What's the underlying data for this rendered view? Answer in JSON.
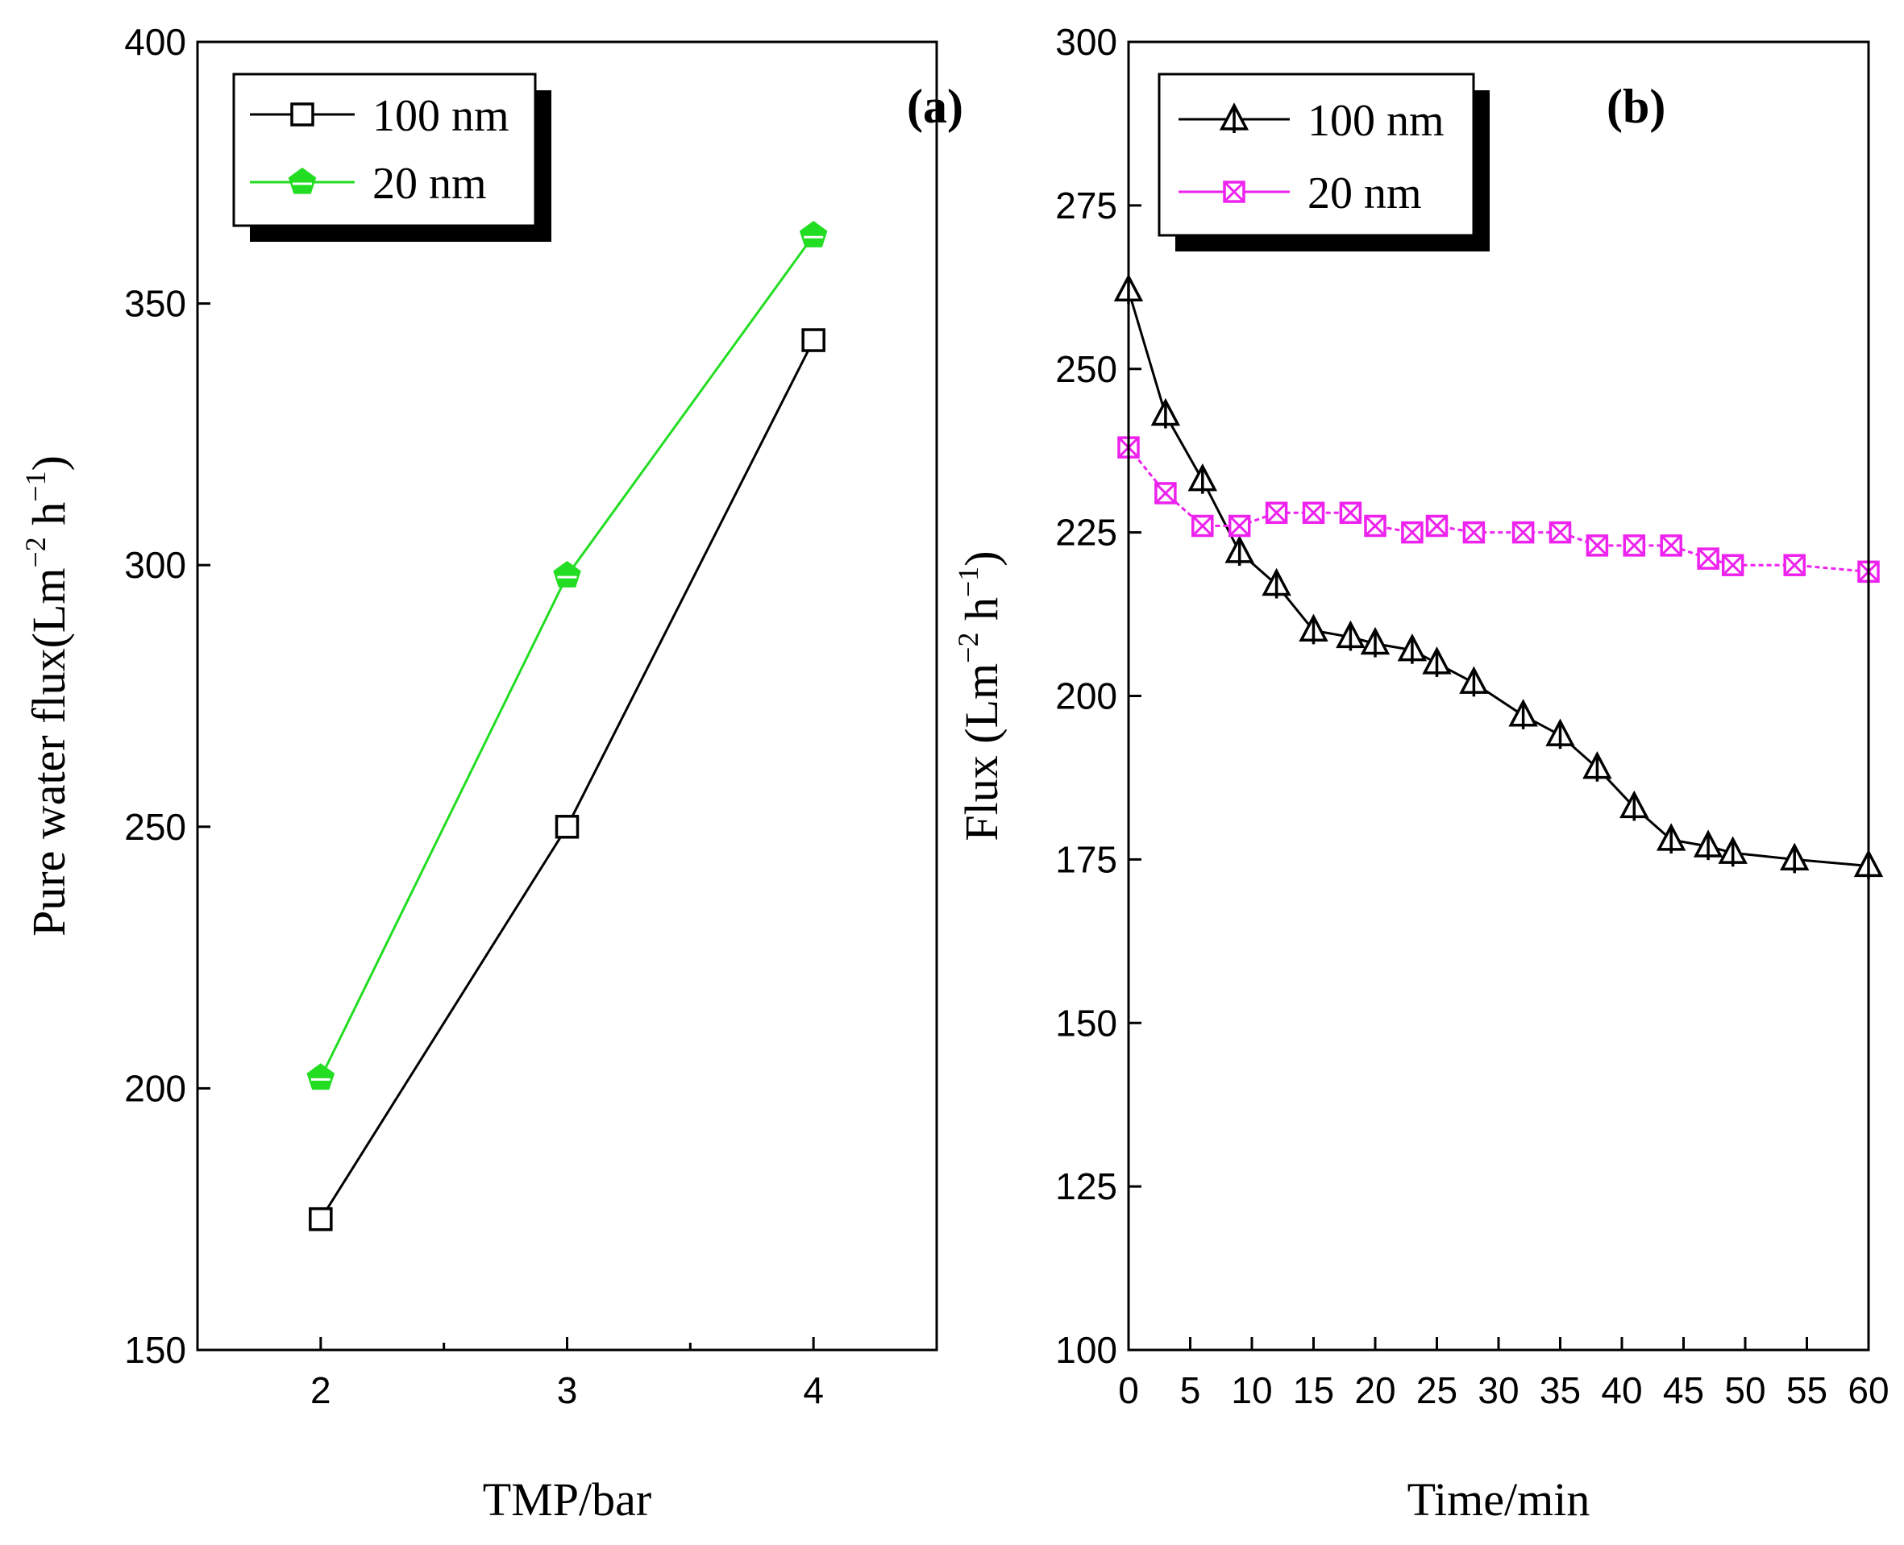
{
  "chart_data": [
    {
      "type": "line",
      "panel_label": "(a)",
      "xlabel": "TMP/bar",
      "ylabel": "Pure water flux(Lm",
      "ylabel_sup1": "−2",
      "ylabel_mid": " h",
      "ylabel_sup2": "−1",
      "ylabel_end": ")",
      "xlim": [
        1.5,
        4.5
      ],
      "ylim": [
        150,
        400
      ],
      "x_ticks": [
        2,
        3,
        4
      ],
      "x_minor_ticks": [
        2.5,
        3.5
      ],
      "y_ticks": [
        150,
        200,
        250,
        300,
        350,
        400
      ],
      "legend_position": "top-left",
      "series": [
        {
          "name": "100 nm",
          "marker": "square",
          "color": "#000000",
          "x": [
            2,
            3,
            4
          ],
          "values": [
            175,
            250,
            343
          ]
        },
        {
          "name": "20 nm",
          "marker": "pentagon",
          "color": "#22dd22",
          "x": [
            2,
            3,
            4
          ],
          "values": [
            202,
            298,
            363
          ]
        }
      ]
    },
    {
      "type": "line",
      "panel_label": "(b)",
      "xlabel": "Time/min",
      "ylabel": "Flux (Lm",
      "ylabel_sup1": "−2",
      "ylabel_mid": " h",
      "ylabel_sup2": "−1",
      "ylabel_end": ")",
      "xlim": [
        0,
        60
      ],
      "ylim": [
        100,
        300
      ],
      "x_ticks": [
        0,
        5,
        10,
        15,
        20,
        25,
        30,
        35,
        40,
        45,
        50,
        55,
        60
      ],
      "y_ticks": [
        100,
        125,
        150,
        175,
        200,
        225,
        250,
        275,
        300
      ],
      "legend_position": "top-left",
      "series": [
        {
          "name": "100 nm",
          "marker": "triangle",
          "color": "#000000",
          "x": [
            0,
            3,
            6,
            9,
            12,
            15,
            18,
            20,
            23,
            25,
            28,
            32,
            35,
            38,
            41,
            44,
            47,
            49,
            54,
            60
          ],
          "values": [
            262,
            243,
            233,
            222,
            217,
            210,
            209,
            208,
            207,
            205,
            202,
            197,
            194,
            189,
            183,
            178,
            177,
            176,
            175,
            174
          ]
        },
        {
          "name": "20 nm",
          "marker": "crossed-square",
          "color": "#ee22ee",
          "x": [
            0,
            3,
            6,
            9,
            12,
            15,
            18,
            20,
            23,
            25,
            28,
            32,
            35,
            38,
            41,
            44,
            47,
            49,
            54,
            60
          ],
          "values": [
            238,
            231,
            226,
            226,
            228,
            228,
            228,
            226,
            225,
            226,
            225,
            225,
            225,
            223,
            223,
            223,
            221,
            220,
            220,
            219
          ]
        }
      ]
    }
  ]
}
